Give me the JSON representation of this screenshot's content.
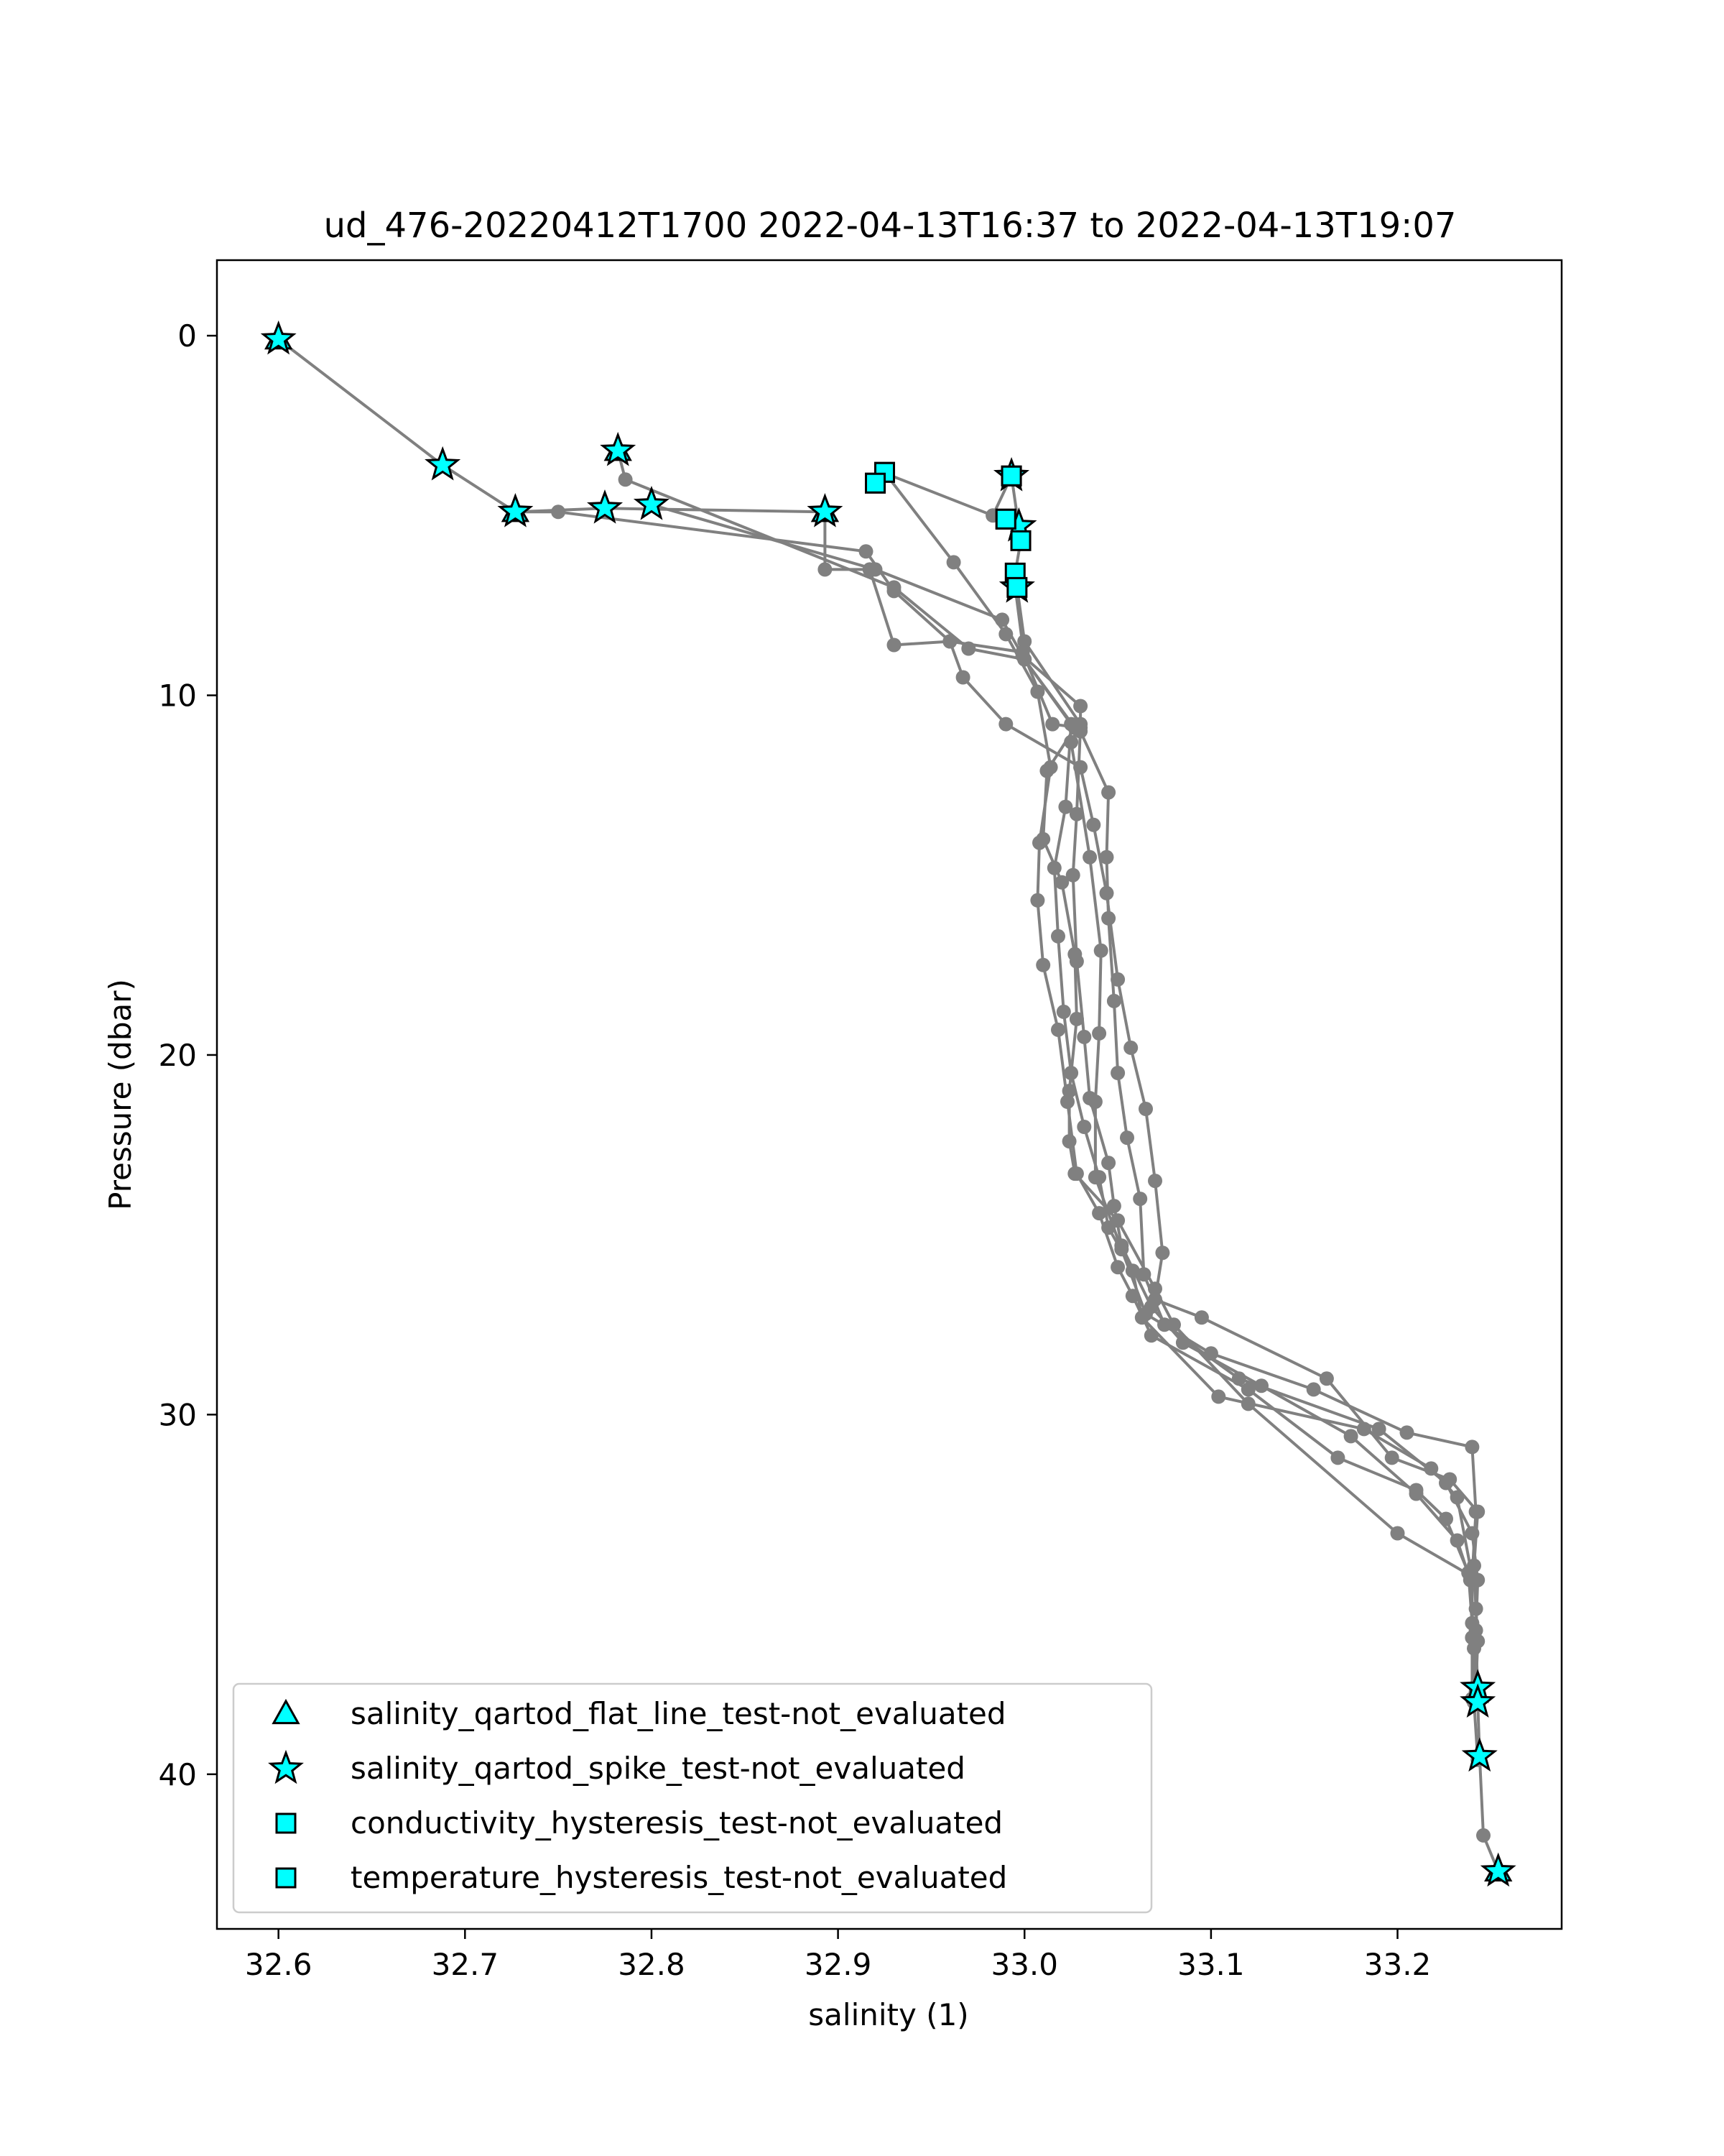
{
  "chart_data": {
    "type": "line",
    "title": "ud_476-20220412T1700 2022-04-13T16:37 to 2022-04-13T19:07",
    "xlabel": "salinity (1)",
    "ylabel": "Pressure (dbar)",
    "xlim": [
      32.567,
      33.288
    ],
    "ylim": [
      44.3,
      -2.1
    ],
    "y_inverted": true,
    "grid": false,
    "legend_position": "lower-left",
    "xticks": [
      {
        "value": 32.6,
        "label": "32.6"
      },
      {
        "value": 32.7,
        "label": "32.7"
      },
      {
        "value": 32.8,
        "label": "32.8"
      },
      {
        "value": 32.9,
        "label": "32.9"
      },
      {
        "value": 33.0,
        "label": "33.0"
      },
      {
        "value": 33.1,
        "label": "33.1"
      },
      {
        "value": 33.2,
        "label": "33.2"
      }
    ],
    "yticks": [
      {
        "value": 0,
        "label": "0"
      },
      {
        "value": 10,
        "label": "10"
      },
      {
        "value": 20,
        "label": "20"
      },
      {
        "value": 30,
        "label": "30"
      },
      {
        "value": 40,
        "label": "40"
      }
    ],
    "colors": {
      "profile_line": "#808080",
      "flag_fill": "#00ffff",
      "flag_edge": "#000000"
    },
    "series": [
      {
        "style": "profile",
        "points": [
          [
            32.6,
            0.1
          ],
          [
            32.688,
            3.6
          ],
          [
            32.727,
            4.9
          ],
          [
            32.75,
            4.9
          ],
          [
            32.915,
            6.0
          ],
          [
            32.93,
            7.1
          ],
          [
            32.96,
            8.5
          ],
          [
            32.967,
            9.5
          ],
          [
            32.99,
            10.8
          ],
          [
            33.03,
            12.0
          ],
          [
            33.037,
            13.6
          ],
          [
            33.044,
            15.5
          ],
          [
            33.05,
            17.9
          ],
          [
            33.057,
            19.8
          ],
          [
            33.065,
            21.5
          ],
          [
            33.07,
            23.5
          ],
          [
            33.074,
            25.5
          ],
          [
            33.07,
            26.8
          ],
          [
            33.095,
            27.3
          ],
          [
            33.162,
            29.0
          ],
          [
            33.197,
            31.2
          ],
          [
            33.228,
            31.8
          ],
          [
            33.243,
            32.7
          ],
          [
            33.241,
            34.2
          ],
          [
            33.242,
            35.4
          ],
          [
            33.243,
            36.3
          ],
          [
            33.242,
            37.6
          ],
          [
            33.243,
            38.0
          ],
          [
            33.244,
            39.5
          ],
          [
            33.246,
            41.7
          ],
          [
            33.254,
            42.7
          ]
        ]
      },
      {
        "style": "profile",
        "points": [
          [
            32.727,
            4.9
          ],
          [
            32.775,
            4.8
          ],
          [
            32.893,
            4.9
          ],
          [
            32.893,
            6.5
          ],
          [
            32.917,
            6.5
          ],
          [
            32.93,
            8.6
          ],
          [
            32.96,
            8.5
          ],
          [
            32.999,
            8.8
          ],
          [
            33.015,
            10.8
          ],
          [
            33.03,
            10.9
          ],
          [
            33.028,
            13.3
          ],
          [
            33.026,
            15.0
          ],
          [
            33.028,
            17.4
          ],
          [
            33.032,
            19.5
          ],
          [
            33.035,
            21.2
          ],
          [
            33.045,
            23.0
          ],
          [
            33.048,
            24.2
          ],
          [
            33.052,
            25.3
          ],
          [
            33.068,
            27.0
          ],
          [
            33.085,
            28.0
          ],
          [
            33.127,
            29.2
          ],
          [
            33.175,
            30.6
          ],
          [
            33.21,
            32.2
          ],
          [
            33.232,
            33.5
          ],
          [
            33.239,
            34.6
          ],
          [
            33.241,
            36.5
          ],
          [
            33.242,
            37.7
          ]
        ]
      },
      {
        "style": "profile",
        "points": [
          [
            32.782,
            3.2
          ],
          [
            32.786,
            4.0
          ],
          [
            32.93,
            7.0
          ],
          [
            32.97,
            8.7
          ],
          [
            33.0,
            9.0
          ],
          [
            33.025,
            10.8
          ],
          [
            33.022,
            13.1
          ],
          [
            33.016,
            14.8
          ],
          [
            33.018,
            16.7
          ],
          [
            33.021,
            18.8
          ],
          [
            33.025,
            20.5
          ],
          [
            33.032,
            22.0
          ],
          [
            33.04,
            23.4
          ],
          [
            33.045,
            24.8
          ],
          [
            33.058,
            26.0
          ],
          [
            33.063,
            27.3
          ],
          [
            33.104,
            29.5
          ],
          [
            33.182,
            30.4
          ],
          [
            33.218,
            31.5
          ],
          [
            33.232,
            32.3
          ],
          [
            33.24,
            34.5
          ],
          [
            33.24,
            36.2
          ],
          [
            33.241,
            38.0
          ],
          [
            33.243,
            39.6
          ]
        ]
      },
      {
        "style": "profile",
        "points": [
          [
            32.8,
            4.7
          ],
          [
            32.92,
            6.5
          ],
          [
            32.988,
            7.9
          ],
          [
            32.999,
            8.9
          ],
          [
            33.03,
            10.3
          ],
          [
            33.03,
            11.0
          ],
          [
            33.045,
            12.7
          ],
          [
            33.044,
            14.5
          ],
          [
            33.045,
            16.2
          ],
          [
            33.048,
            18.5
          ],
          [
            33.05,
            20.5
          ],
          [
            33.055,
            22.3
          ],
          [
            33.062,
            24.0
          ],
          [
            33.064,
            26.1
          ],
          [
            33.075,
            27.5
          ],
          [
            33.115,
            29.0
          ],
          [
            33.19,
            30.4
          ],
          [
            33.226,
            31.9
          ],
          [
            33.24,
            33.3
          ],
          [
            33.243,
            34.6
          ],
          [
            33.242,
            36.0
          ],
          [
            33.243,
            37.8
          ]
        ]
      },
      {
        "style": "profile",
        "points": [
          [
            32.92,
            4.1
          ],
          [
            32.925,
            3.8
          ],
          [
            32.962,
            6.3
          ],
          [
            32.99,
            8.3
          ],
          [
            33.007,
            9.9
          ],
          [
            33.014,
            12.0
          ],
          [
            33.008,
            14.1
          ],
          [
            33.007,
            15.7
          ],
          [
            33.01,
            17.5
          ],
          [
            33.018,
            19.3
          ],
          [
            33.023,
            21.3
          ],
          [
            33.028,
            23.3
          ],
          [
            33.04,
            24.4
          ],
          [
            33.05,
            25.9
          ],
          [
            33.058,
            26.7
          ],
          [
            33.068,
            27.8
          ],
          [
            33.12,
            29.3
          ],
          [
            33.168,
            31.2
          ],
          [
            33.21,
            32.1
          ],
          [
            33.226,
            32.9
          ],
          [
            33.238,
            34.4
          ],
          [
            33.24,
            35.8
          ]
        ]
      },
      {
        "style": "profile",
        "points": [
          [
            32.924,
            3.8
          ],
          [
            32.983,
            5.0
          ],
          [
            32.993,
            3.9
          ],
          [
            32.998,
            5.7
          ],
          [
            32.995,
            6.6
          ],
          [
            32.996,
            7.0
          ],
          [
            33.0,
            8.5
          ],
          [
            33.03,
            10.8
          ],
          [
            33.025,
            11.3
          ],
          [
            33.035,
            14.5
          ],
          [
            33.041,
            17.1
          ],
          [
            33.04,
            19.4
          ],
          [
            33.038,
            21.3
          ],
          [
            33.038,
            23.4
          ],
          [
            33.052,
            25.4
          ],
          [
            33.065,
            27.2
          ],
          [
            33.1,
            28.3
          ],
          [
            33.155,
            29.3
          ],
          [
            33.205,
            30.5
          ],
          [
            33.24,
            30.9
          ],
          [
            33.242,
            32.7
          ],
          [
            33.24,
            34.5
          ],
          [
            33.24,
            36.2
          ],
          [
            33.24,
            37.9
          ]
        ]
      },
      {
        "style": "profile",
        "points": [
          [
            32.995,
            7.0
          ],
          [
            33.0,
            9.0
          ],
          [
            33.027,
            10.9
          ],
          [
            33.012,
            12.1
          ],
          [
            33.01,
            14.0
          ],
          [
            33.02,
            15.2
          ],
          [
            33.027,
            17.2
          ],
          [
            33.028,
            19.0
          ],
          [
            33.024,
            21.0
          ],
          [
            33.024,
            22.4
          ],
          [
            33.027,
            23.3
          ],
          [
            33.05,
            24.6
          ],
          [
            33.07,
            26.5
          ],
          [
            33.08,
            27.5
          ],
          [
            33.12,
            29.7
          ],
          [
            33.2,
            33.3
          ],
          [
            33.24,
            34.5
          ]
        ]
      }
    ],
    "flag_markers": {
      "spike_star": [
        [
          32.6,
          0.1
        ],
        [
          32.688,
          3.6
        ],
        [
          32.727,
          4.9
        ],
        [
          32.782,
          3.2
        ],
        [
          32.775,
          4.8
        ],
        [
          32.8,
          4.7
        ],
        [
          32.893,
          4.9
        ],
        [
          32.993,
          3.9
        ],
        [
          32.997,
          5.3
        ],
        [
          32.996,
          7.0
        ],
        [
          33.243,
          37.6
        ],
        [
          33.243,
          38.0
        ],
        [
          33.244,
          39.5
        ],
        [
          33.254,
          42.7
        ]
      ],
      "flat_line_triangle": [
        [
          32.6,
          0.1
        ],
        [
          32.727,
          4.9
        ],
        [
          32.893,
          4.9
        ],
        [
          32.782,
          3.2
        ],
        [
          33.254,
          42.7
        ]
      ],
      "conductivity_square": [
        [
          32.925,
          3.8
        ],
        [
          32.92,
          4.1
        ],
        [
          32.993,
          3.9
        ],
        [
          32.99,
          5.1
        ],
        [
          32.998,
          5.7
        ],
        [
          32.995,
          6.6
        ],
        [
          32.996,
          7.0
        ]
      ],
      "temperature_square": [
        [
          32.925,
          3.8
        ],
        [
          32.92,
          4.1
        ],
        [
          32.993,
          3.9
        ],
        [
          32.99,
          5.1
        ]
      ]
    },
    "legend": [
      {
        "marker": "triangle",
        "label": "salinity_qartod_flat_line_test-not_evaluated"
      },
      {
        "marker": "star",
        "label": "salinity_qartod_spike_test-not_evaluated"
      },
      {
        "marker": "square",
        "label": "conductivity_hysteresis_test-not_evaluated"
      },
      {
        "marker": "square",
        "label": "temperature_hysteresis_test-not_evaluated"
      }
    ]
  }
}
